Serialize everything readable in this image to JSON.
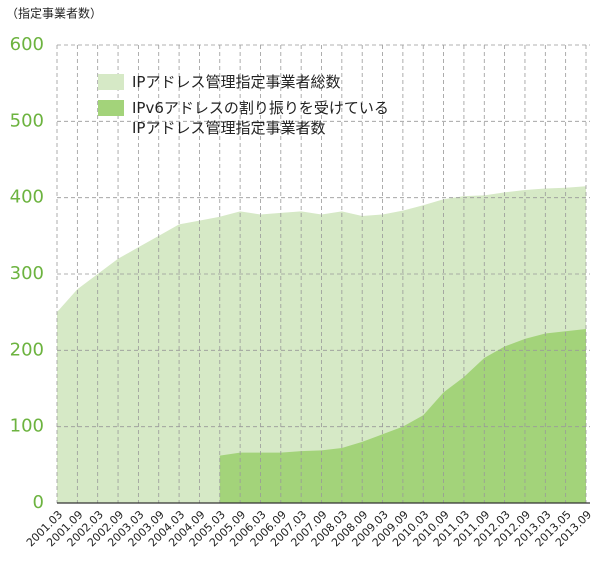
{
  "chart_data": {
    "type": "area",
    "ylabel": "（指定事業者数）",
    "categories": [
      "2001.03",
      "2001.09",
      "2002.03",
      "2002.09",
      "2003.03",
      "2003.09",
      "2004.03",
      "2004.09",
      "2005.03",
      "2005.09",
      "2006.03",
      "2006.09",
      "2007.03",
      "2007.09",
      "2008.03",
      "2008.09",
      "2009.03",
      "2009.09",
      "2010.03",
      "2010.09",
      "2011.03",
      "2011.09",
      "2012.03",
      "2012.09",
      "2013.03",
      "2013.05",
      "2013.09"
    ],
    "series": [
      {
        "name": "IPアドレス管理指定事業者総数",
        "color": "#d6e9c6",
        "values": [
          250,
          280,
          300,
          320,
          335,
          350,
          365,
          370,
          375,
          382,
          378,
          380,
          382,
          378,
          382,
          376,
          378,
          383,
          390,
          398,
          402,
          403,
          407,
          410,
          412,
          413,
          415
        ]
      },
      {
        "name": "IPv6アドレスの割り振りを受けている\nIPアドレス管理指定事業者数",
        "color": "#a3d37a",
        "values": [
          null,
          null,
          null,
          null,
          null,
          null,
          null,
          null,
          62,
          66,
          66,
          66,
          68,
          69,
          72,
          80,
          90,
          100,
          115,
          145,
          165,
          190,
          205,
          215,
          222,
          225,
          228
        ]
      }
    ],
    "ylim": [
      0,
      600
    ],
    "yticks": [
      0,
      100,
      200,
      300,
      400,
      500,
      600
    ],
    "grid": true
  }
}
